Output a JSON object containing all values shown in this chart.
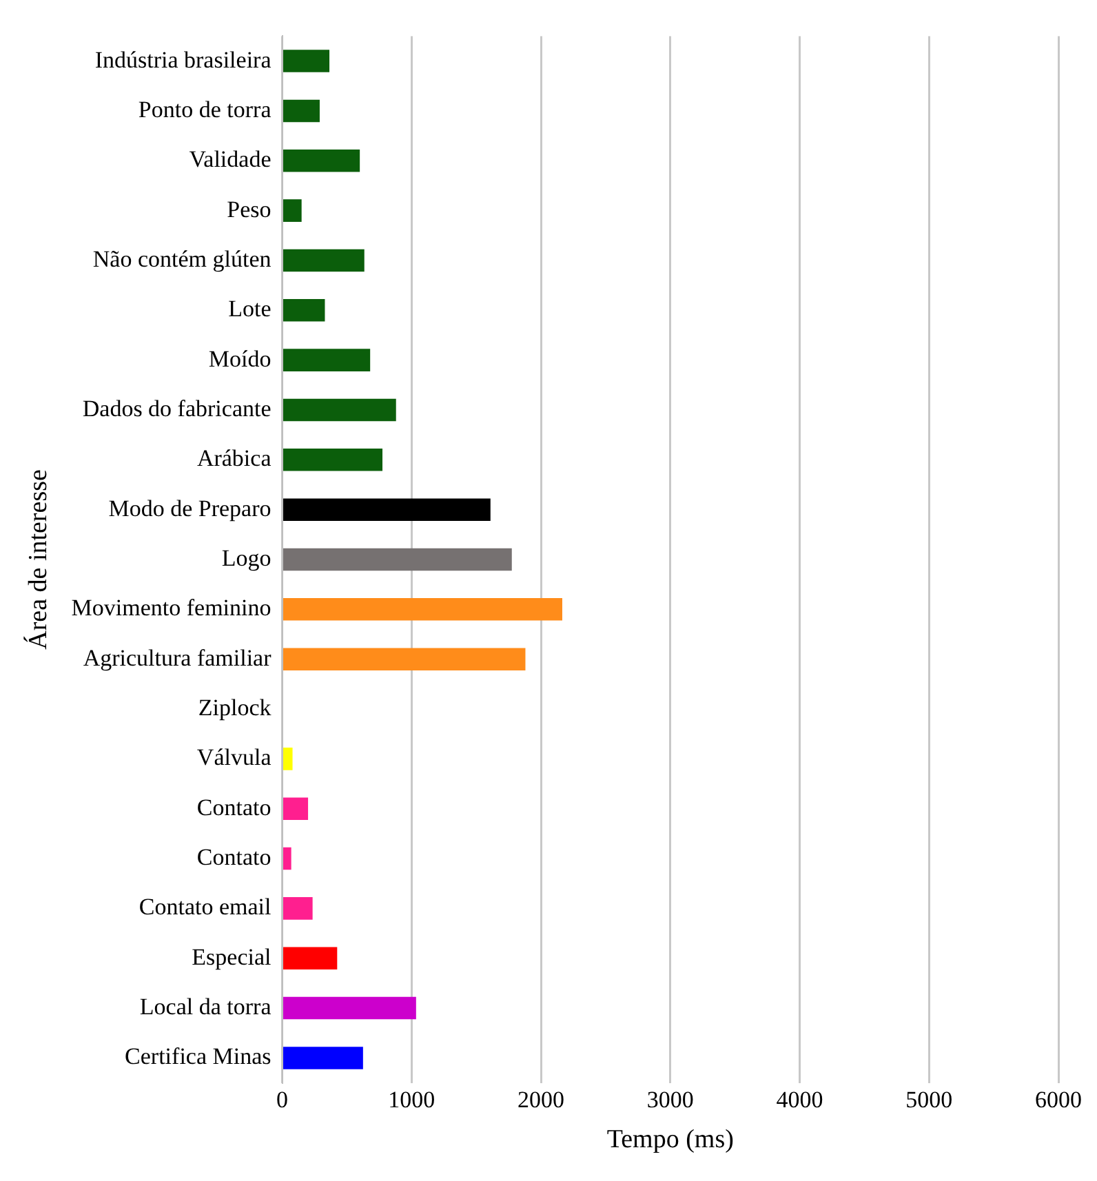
{
  "chart_data": {
    "type": "bar",
    "orientation": "horizontal",
    "xlabel": "Tempo (ms)",
    "ylabel": "Área de interesse",
    "categories": [
      "Indústria brasileira",
      "Ponto de torra",
      "Validade",
      "Peso",
      "Não contém glúten",
      "Lote",
      "Moído",
      "Dados do fabricante",
      "Arábica",
      "Modo de Preparo",
      "Logo",
      "Movimento feminino",
      "Agricultura familiar",
      "Ziplock",
      "Válvula",
      "Contato",
      "Contato",
      "Contato email",
      "Especial",
      "Local da torra",
      "Certifica Minas"
    ],
    "values": [
      365,
      290,
      600,
      150,
      635,
      330,
      680,
      880,
      775,
      1610,
      1775,
      2165,
      1880,
      0,
      80,
      200,
      70,
      235,
      425,
      1035,
      625
    ],
    "colors": [
      "#0b5e0b",
      "#0b5e0b",
      "#0b5e0b",
      "#0b5e0b",
      "#0b5e0b",
      "#0b5e0b",
      "#0b5e0b",
      "#0b5e0b",
      "#0b5e0b",
      "#000000",
      "#767171",
      "#ff8c1a",
      "#ff8c1a",
      "#ff8c1a",
      "#ffff00",
      "#ff1f8f",
      "#ff1f8f",
      "#ff1f8f",
      "#ff0000",
      "#cc00cc",
      "#0000ff"
    ],
    "xlim": [
      0,
      6000
    ],
    "xticks": [
      0,
      1000,
      2000,
      3000,
      4000,
      5000,
      6000
    ],
    "grid": "x",
    "legend": false
  }
}
